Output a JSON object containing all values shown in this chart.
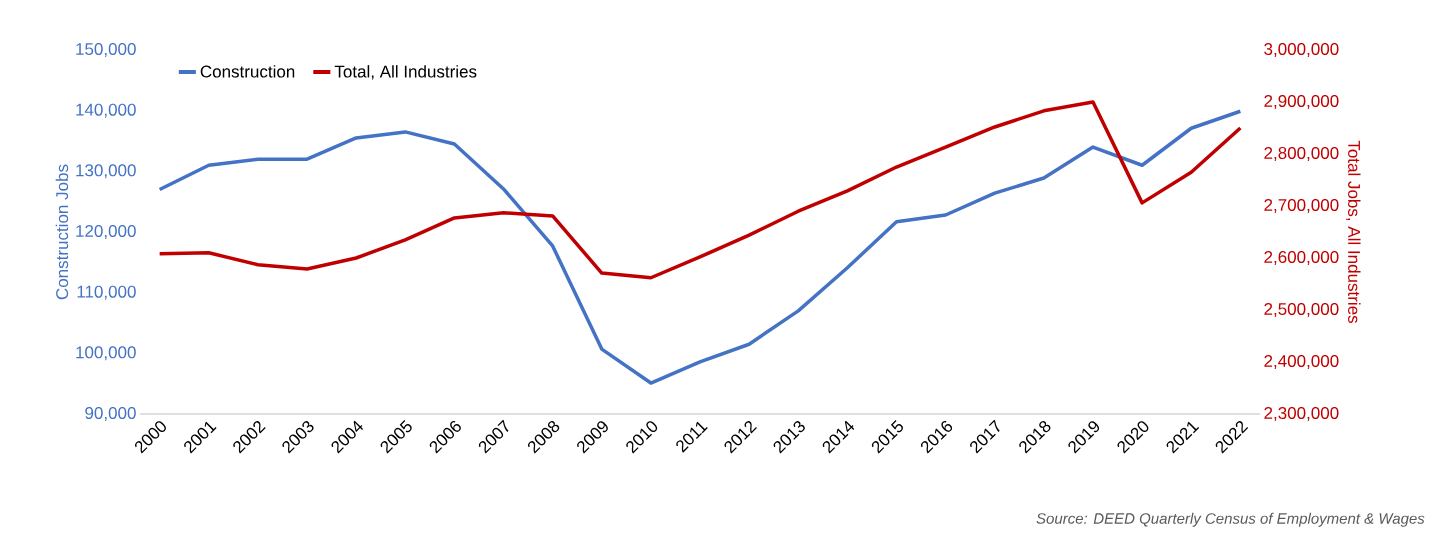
{
  "chart_data": {
    "type": "line",
    "categories": [
      "2000",
      "2001",
      "2002",
      "2003",
      "2004",
      "2005",
      "2006",
      "2007",
      "2008",
      "2009",
      "2010",
      "2011",
      "2012",
      "2013",
      "2014",
      "2015",
      "2016",
      "2017",
      "2018",
      "2019",
      "2020",
      "2021",
      "2022"
    ],
    "series": [
      {
        "name": "Construction",
        "color": "#4472c4",
        "values": [
          127000,
          131000,
          132000,
          132000,
          135500,
          136500,
          134500,
          127100,
          117700,
          100700,
          95100,
          98600,
          101500,
          107000,
          114100,
          121700,
          122800,
          126400,
          128900,
          134000,
          131000,
          137100,
          139900
        ]
      },
      {
        "name": "Total, All Industries",
        "color": "#c00000",
        "axis": "y2",
        "values": [
          2608000,
          2610000,
          2587000,
          2579000,
          2600000,
          2635000,
          2677000,
          2687000,
          2681000,
          2571000,
          2562000,
          2602000,
          2644000,
          2690000,
          2729000,
          2775000,
          2813000,
          2852000,
          2883000,
          2900000,
          2706000,
          2765000,
          2850000
        ]
      }
    ],
    "ylabel": "Construction Jobs",
    "y2label": "Total Jobs, All Industries",
    "ylim": [
      90000,
      150000
    ],
    "yticks": [
      {
        "value": 90000,
        "label": "90,000"
      },
      {
        "value": 100000,
        "label": "100,000"
      },
      {
        "value": 110000,
        "label": "110,000"
      },
      {
        "value": 120000,
        "label": "120,000"
      },
      {
        "value": 130000,
        "label": "130,000"
      },
      {
        "value": 140000,
        "label": "140,000"
      },
      {
        "value": 150000,
        "label": "150,000"
      }
    ],
    "y2lim": [
      2300000,
      3000000
    ],
    "y2ticks": [
      {
        "value": 2300000,
        "label": "2,300,000"
      },
      {
        "value": 2400000,
        "label": "2,400,000"
      },
      {
        "value": 2500000,
        "label": "2,500,000"
      },
      {
        "value": 2600000,
        "label": "2,600,000"
      },
      {
        "value": 2700000,
        "label": "2,700,000"
      },
      {
        "value": 2800000,
        "label": "2,800,000"
      },
      {
        "value": 2900000,
        "label": "2,900,000"
      },
      {
        "value": 3000000,
        "label": "3,000,000"
      }
    ],
    "legend": "top left",
    "annotations": [
      "Source: DEED Quarterly Census of Employment & Wages"
    ]
  }
}
